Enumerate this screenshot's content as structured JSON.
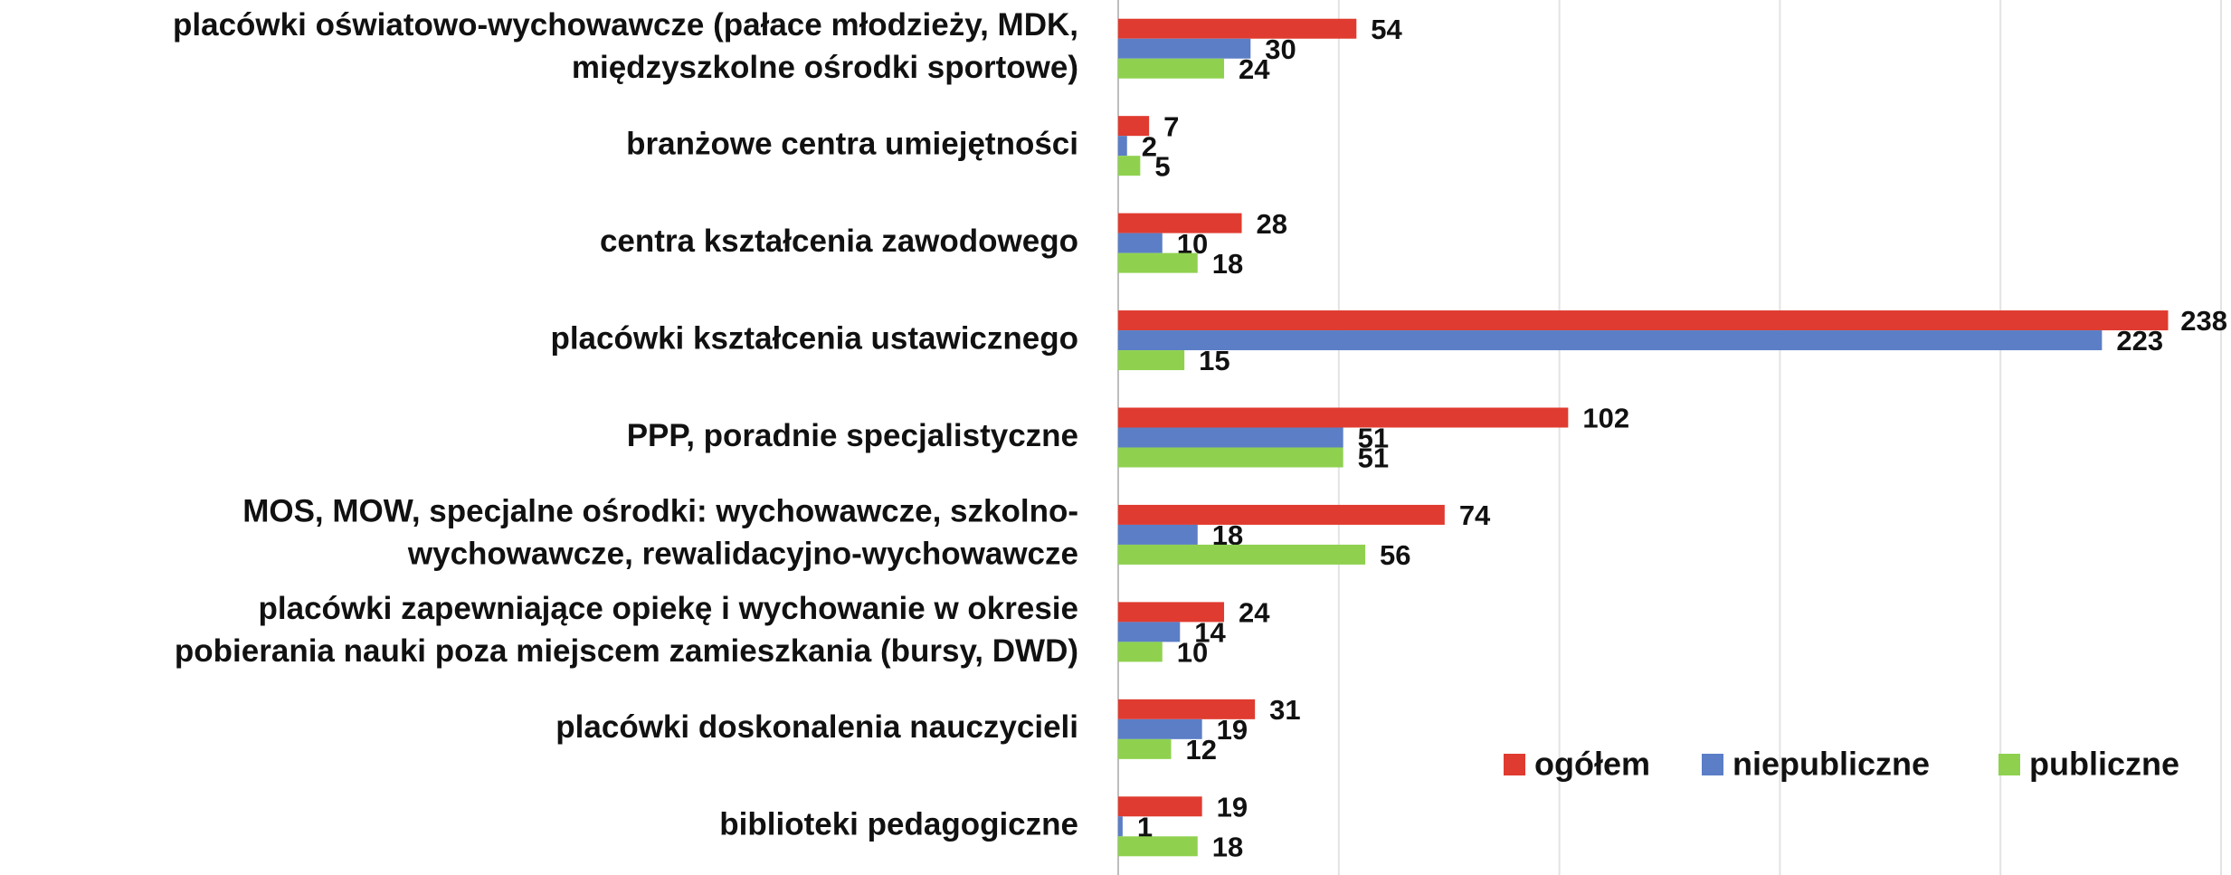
{
  "chart_data": {
    "type": "hbar",
    "categories": [
      "placówki oświatowo-wychowawcze (pałace młodzieży, MDK,\nmiędzyszkolne ośrodki sportowe)",
      "branżowe centra umiejętności",
      "centra kształcenia zawodowego",
      "placówki kształcenia ustawicznego",
      "PPP, poradnie specjalistyczne",
      "MOS, MOW, specjalne ośrodki: wychowawcze, szkolno-\nwychowawcze, rewalidacyjno-wychowawcze",
      "placówki zapewniające opiekę i wychowanie w okresie\npobierania nauki poza miejscem zamieszkania (bursy, DWD)",
      "placówki doskonalenia nauczycieli",
      "biblioteki pedagogiczne"
    ],
    "series": [
      {
        "name": "ogółem",
        "color": "#e03b30",
        "values": [
          54,
          7,
          28,
          238,
          102,
          74,
          24,
          31,
          19
        ]
      },
      {
        "name": "niepubliczne",
        "color": "#5b7ec6",
        "values": [
          30,
          2,
          10,
          223,
          51,
          18,
          14,
          19,
          1
        ]
      },
      {
        "name": "publiczne",
        "color": "#8fd14f",
        "values": [
          24,
          5,
          18,
          15,
          51,
          56,
          10,
          12,
          18
        ]
      }
    ],
    "xlim": [
      0,
      250
    ],
    "xticks": [
      0,
      50,
      100,
      150,
      200,
      250
    ],
    "grid": true,
    "legend": "lower-right"
  }
}
